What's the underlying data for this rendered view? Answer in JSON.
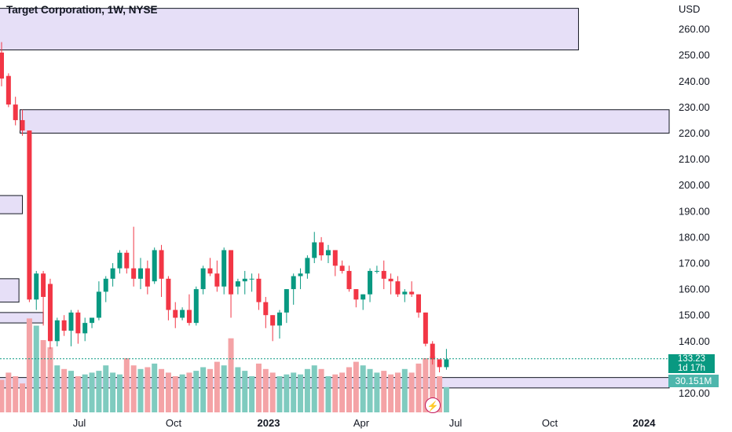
{
  "header": {
    "title": "Target Corporation, 1W, NYSE",
    "currency": "USD"
  },
  "colors": {
    "up": "#089981",
    "down": "#f23645",
    "zone_fill": "#e6dff7",
    "zone_stroke": "#131722",
    "vol_up": "#7fcbbf",
    "vol_down": "#f4a3a6"
  },
  "last_price": {
    "value": "133.23",
    "countdown": "1d 17h"
  },
  "volume_tag": "30.151M",
  "event_icon": "lightning-icon",
  "chart_data": {
    "type": "candlestick",
    "y_axis": {
      "ticks": [
        "120.00",
        "130.00",
        "140.00",
        "150.00",
        "160.00",
        "170.00",
        "180.00",
        "190.00",
        "200.00",
        "210.00",
        "220.00",
        "230.00",
        "240.00",
        "250.00",
        "260.00"
      ],
      "ylim": [
        116,
        266
      ]
    },
    "x_axis": {
      "labels": [
        "Jul",
        "Oct",
        "2023",
        "Apr",
        "Jul",
        "Oct",
        "2024"
      ]
    },
    "zones": [
      {
        "low": 252,
        "high": 268,
        "from": 0,
        "to": 83
      },
      {
        "low": 220,
        "high": 229,
        "from": 3,
        "to": 999
      },
      {
        "low": 189,
        "high": 196,
        "from": -1,
        "to": 3
      },
      {
        "low": 155,
        "high": 164,
        "from": -1,
        "to": 2.5
      },
      {
        "low": 147,
        "high": 151,
        "from": -1,
        "to": 6
      },
      {
        "low": 122,
        "high": 126,
        "from": -1,
        "to": 999
      }
    ],
    "candles": [
      [
        251,
        255,
        238,
        241,
        18
      ],
      [
        242,
        243,
        230,
        231,
        22
      ],
      [
        231,
        234,
        223,
        225,
        20
      ],
      [
        225,
        229,
        219,
        221,
        16
      ],
      [
        221,
        221,
        155,
        156,
        52
      ],
      [
        156,
        167,
        152,
        166,
        48
      ],
      [
        166,
        167,
        146,
        157,
        40
      ],
      [
        162,
        164,
        137,
        140,
        36
      ],
      [
        140,
        149,
        138,
        148,
        26
      ],
      [
        148,
        150,
        142,
        144,
        24
      ],
      [
        144,
        152,
        138,
        151,
        23
      ],
      [
        151,
        152,
        139,
        143,
        20
      ],
      [
        143,
        149,
        140,
        147,
        21
      ],
      [
        147,
        149,
        145,
        149,
        22
      ],
      [
        149,
        163,
        148,
        159,
        23
      ],
      [
        159,
        165,
        155,
        164,
        26
      ],
      [
        164,
        170,
        161,
        168,
        22
      ],
      [
        168,
        175,
        166,
        174,
        21
      ],
      [
        174,
        175,
        166,
        168,
        30
      ],
      [
        168,
        184,
        161,
        164,
        26
      ],
      [
        164,
        172,
        160,
        168,
        24
      ],
      [
        168,
        171,
        158,
        161,
        25
      ],
      [
        163,
        176,
        162,
        175,
        27
      ],
      [
        175,
        177,
        157,
        164,
        24
      ],
      [
        164,
        165,
        148,
        152,
        22
      ],
      [
        152,
        155,
        145,
        149,
        20
      ],
      [
        149,
        153,
        148,
        152,
        21
      ],
      [
        152,
        158,
        146,
        147,
        22
      ],
      [
        147,
        161,
        146,
        160,
        23
      ],
      [
        160,
        169,
        158,
        168,
        25
      ],
      [
        168,
        172,
        165,
        166,
        24
      ],
      [
        166,
        171,
        159,
        161,
        28
      ],
      [
        161,
        176,
        158,
        175,
        26
      ],
      [
        175,
        175,
        149,
        158,
        41
      ],
      [
        161,
        164,
        158,
        163,
        25
      ],
      [
        163,
        167,
        158,
        164,
        23
      ],
      [
        164,
        166,
        159,
        164,
        20
      ],
      [
        164,
        166,
        152,
        155,
        27
      ],
      [
        155,
        157,
        145,
        150,
        24
      ],
      [
        150,
        150,
        140,
        146,
        22
      ],
      [
        146,
        152,
        141,
        151,
        20
      ],
      [
        151,
        160,
        147,
        160,
        21
      ],
      [
        160,
        166,
        154,
        165,
        22
      ],
      [
        165,
        168,
        160,
        166,
        21
      ],
      [
        166,
        173,
        164,
        172,
        24
      ],
      [
        172,
        182,
        170,
        178,
        26
      ],
      [
        178,
        180,
        171,
        173,
        24
      ],
      [
        173,
        177,
        170,
        175,
        20
      ],
      [
        175,
        175,
        165,
        169,
        21
      ],
      [
        169,
        171,
        166,
        167,
        22
      ],
      [
        167,
        169,
        159,
        160,
        25
      ],
      [
        160,
        160,
        153,
        156,
        28
      ],
      [
        156,
        158,
        152,
        158,
        26
      ],
      [
        158,
        168,
        155,
        167,
        24
      ],
      [
        167,
        169,
        166,
        167,
        22
      ],
      [
        167,
        171,
        160,
        164,
        23
      ],
      [
        164,
        166,
        158,
        163,
        21
      ],
      [
        163,
        165,
        157,
        158,
        22
      ],
      [
        158,
        160,
        155,
        159,
        24
      ],
      [
        159,
        163,
        157,
        158,
        22
      ],
      [
        158,
        158,
        149,
        151,
        27
      ],
      [
        151,
        151,
        138,
        139,
        30
      ],
      [
        139,
        140,
        131,
        133,
        31
      ],
      [
        133,
        133,
        128,
        130,
        20
      ],
      [
        130,
        137,
        129,
        133,
        14
      ]
    ]
  }
}
